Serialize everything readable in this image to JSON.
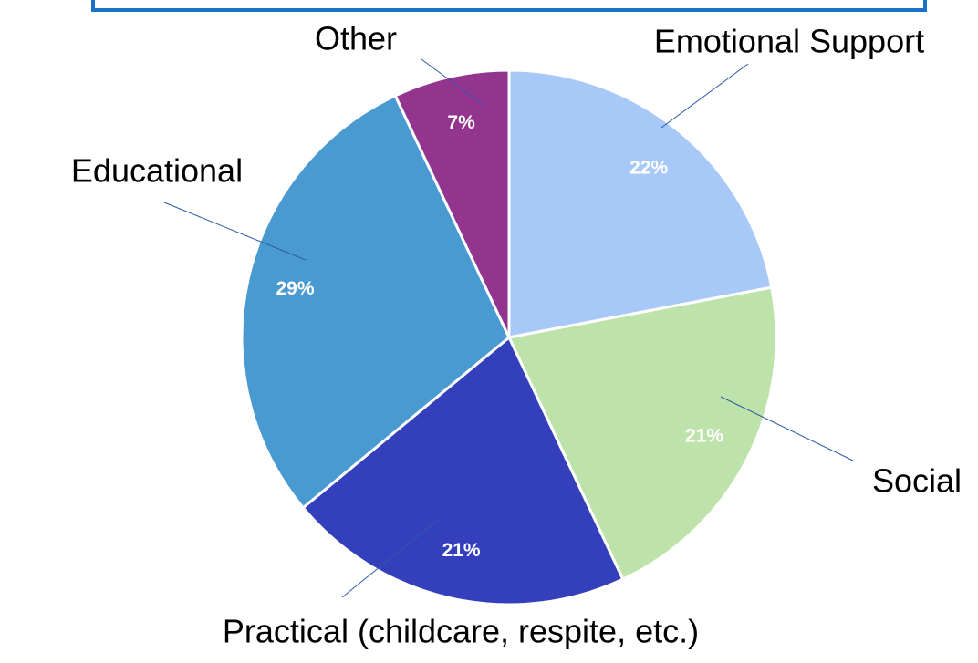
{
  "chart_data": {
    "type": "pie",
    "categories": [
      "Emotional Support",
      "Social",
      "Practical (childcare, respite, etc.)",
      "Educational",
      "Other"
    ],
    "values": [
      22,
      21,
      21,
      29,
      7
    ],
    "value_labels": [
      "22%",
      "21%",
      "21%",
      "29%",
      "7%"
    ],
    "colors": [
      "#a8c9f7",
      "#bde3aa",
      "#3440bb",
      "#4a9ad2",
      "#93358e"
    ]
  }
}
